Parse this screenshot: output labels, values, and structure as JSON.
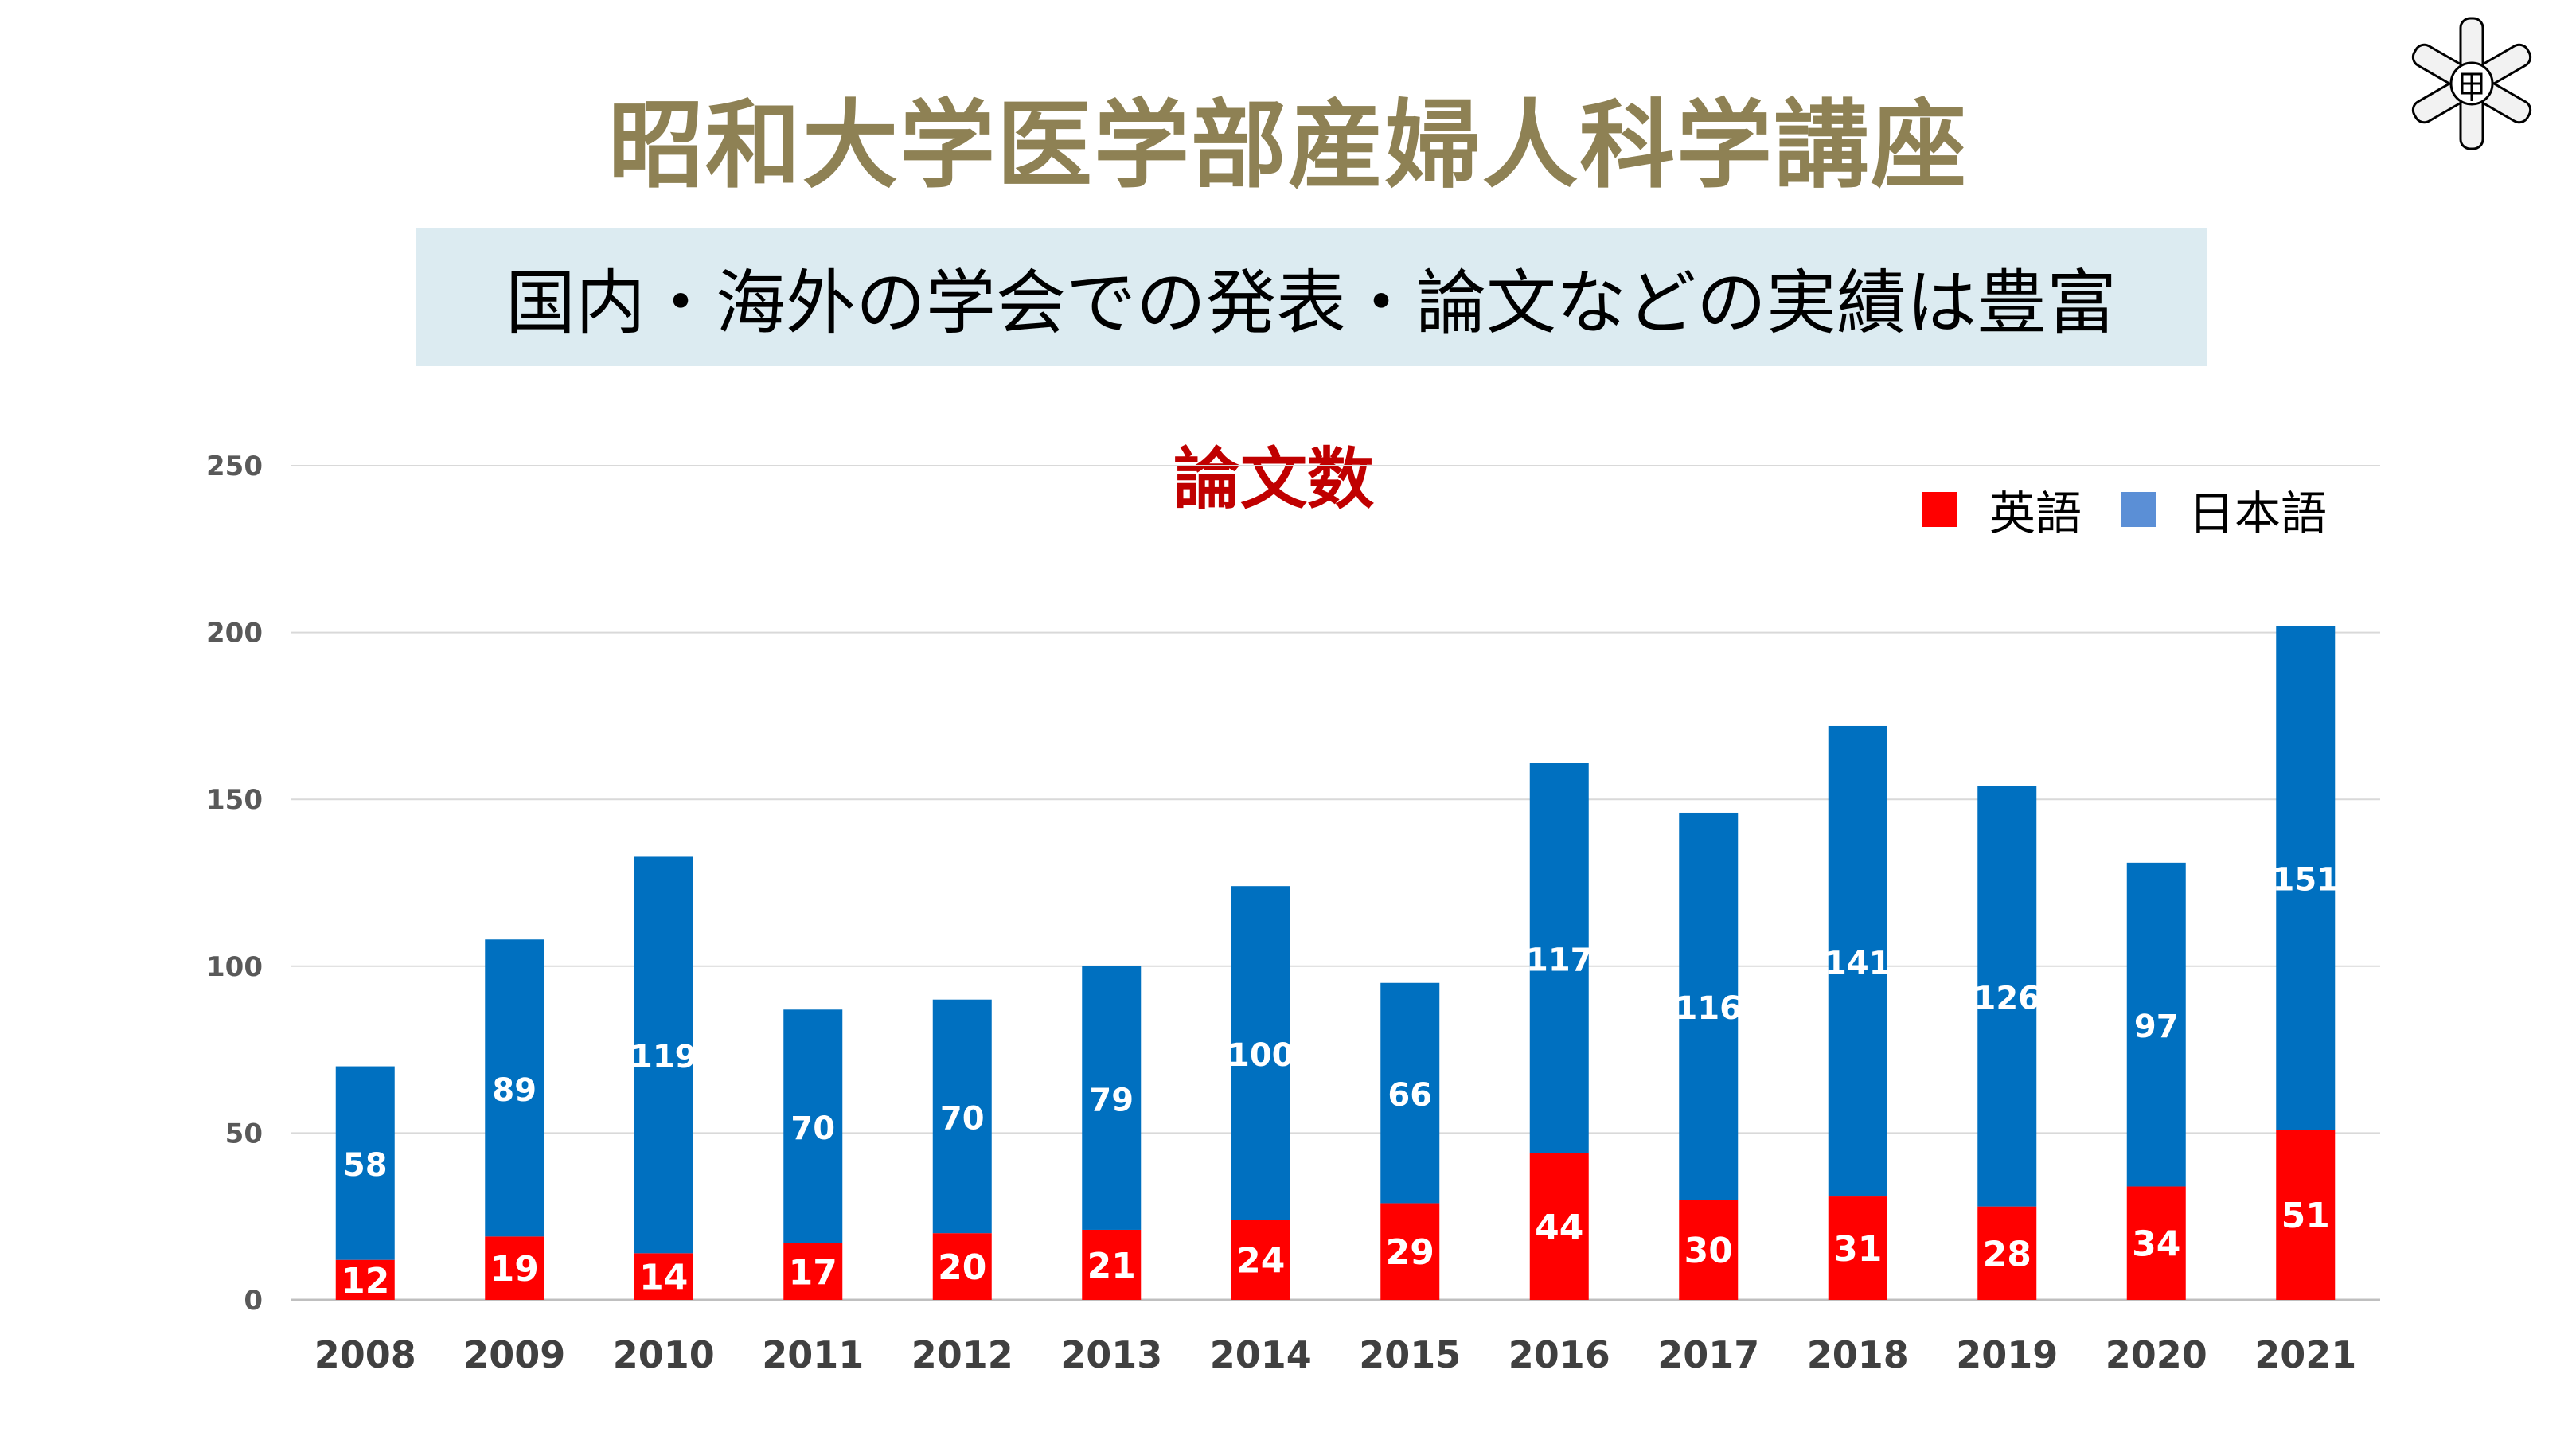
{
  "header": {
    "title": "昭和大学医学部産婦人科学講座",
    "banner": "国内・海外の学会での発表・論文などの実績は豊富"
  },
  "colors": {
    "english": "#ff0000",
    "japanese": "#0070c0",
    "japanese_legend": "#5b8fd6",
    "title": "#8e8154",
    "chart_title": "#c00000",
    "banner_bg": "#dcebf1"
  },
  "chart_data": {
    "type": "bar",
    "stacked": true,
    "title": "論文数",
    "categories": [
      "2008",
      "2009",
      "2010",
      "2011",
      "2012",
      "2013",
      "2014",
      "2015",
      "2016",
      "2017",
      "2018",
      "2019",
      "2020",
      "2021"
    ],
    "series": [
      {
        "name": "英語",
        "values": [
          12,
          19,
          14,
          17,
          20,
          21,
          24,
          29,
          44,
          30,
          31,
          28,
          34,
          51
        ]
      },
      {
        "name": "日本語",
        "values": [
          58,
          89,
          119,
          70,
          70,
          79,
          100,
          66,
          117,
          116,
          141,
          126,
          97,
          151
        ]
      }
    ],
    "ylim": [
      0,
      250
    ],
    "yticks": [
      0,
      50,
      100,
      150,
      200,
      250
    ],
    "grid": true,
    "legend": "top-right",
    "xlabel": "",
    "ylabel": ""
  }
}
